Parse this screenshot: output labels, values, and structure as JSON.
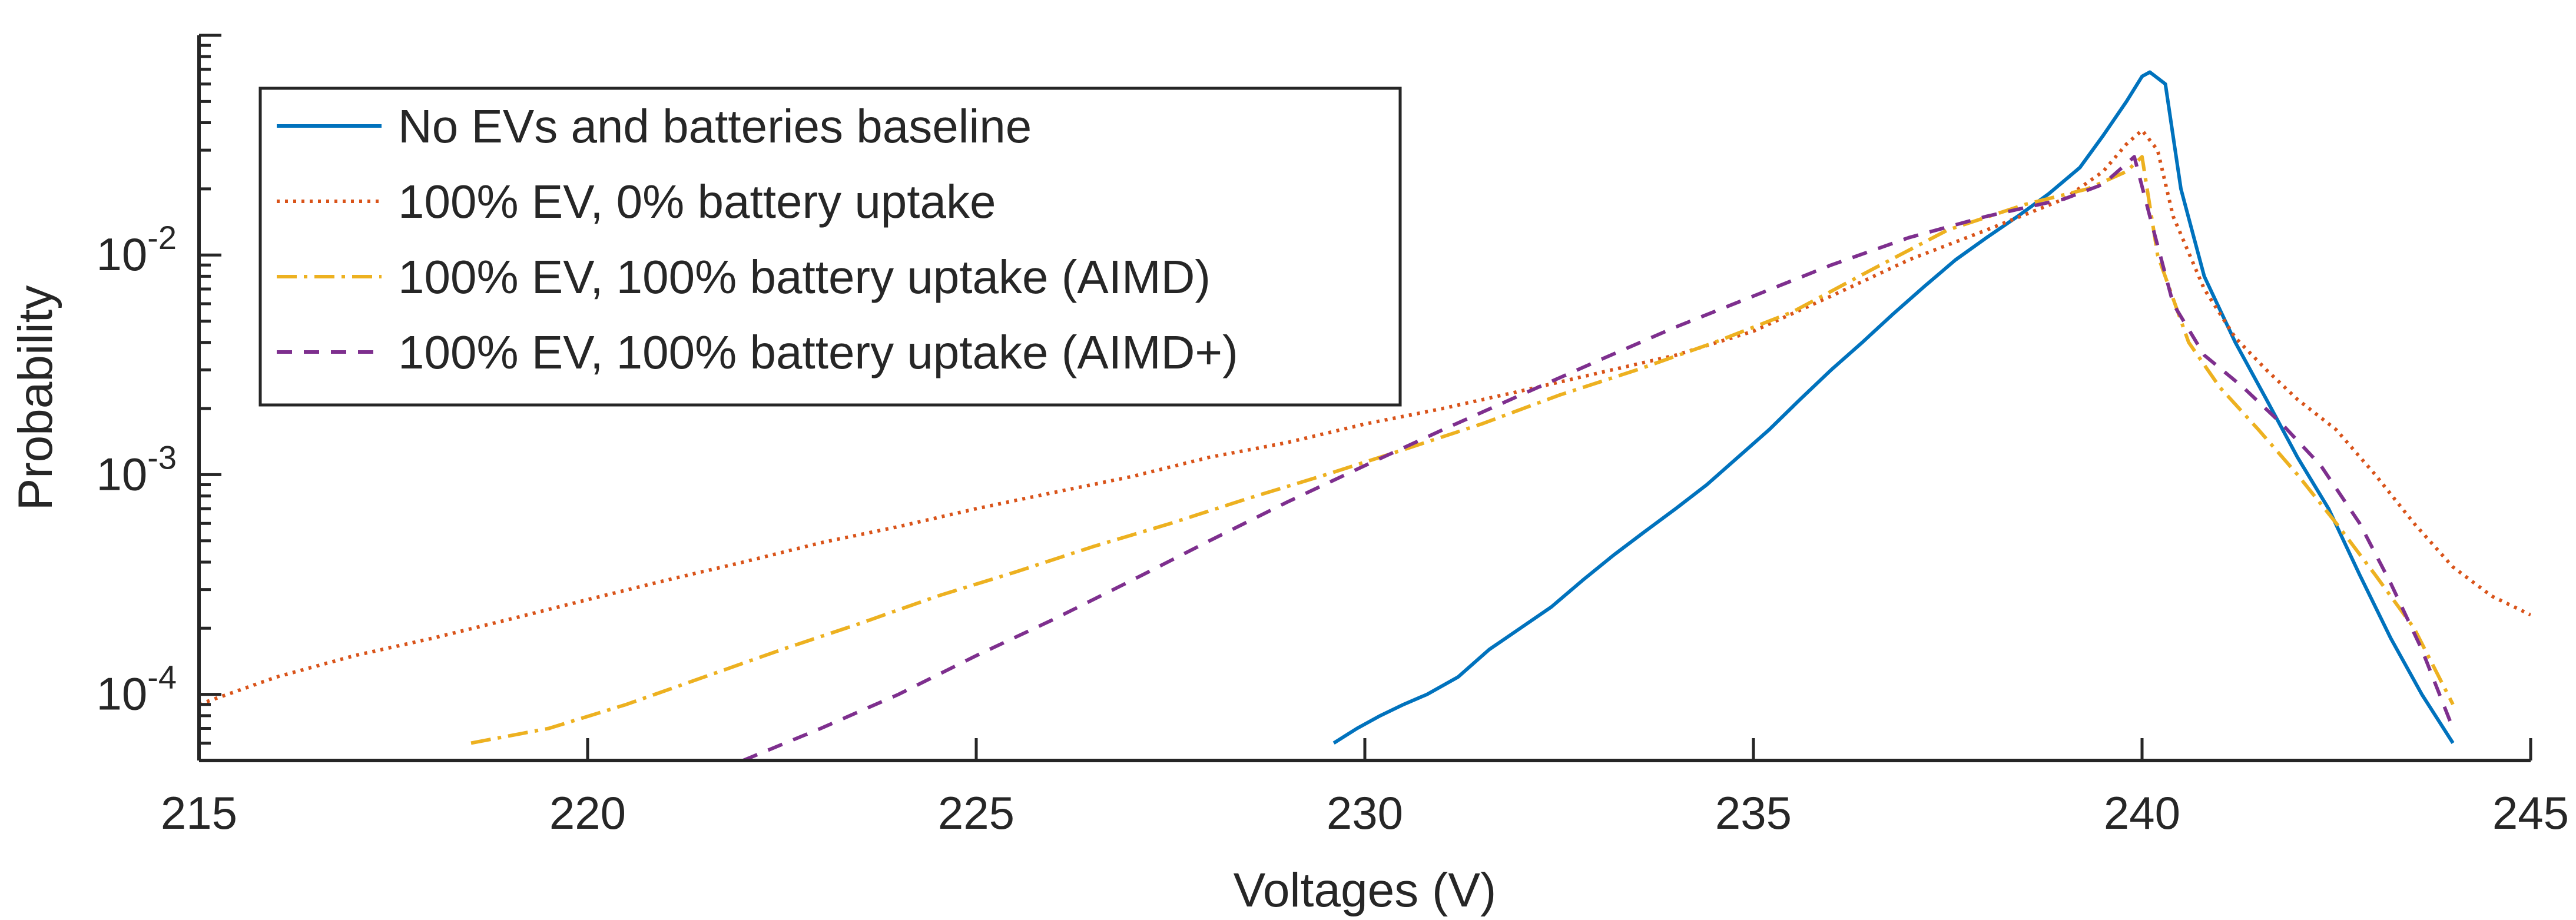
{
  "chart_data": {
    "type": "line",
    "title": "",
    "xlabel": "Voltages (V)",
    "ylabel": "Probability",
    "xlim": [
      215,
      245
    ],
    "ylim": [
      5e-05,
      0.1
    ],
    "yscale": "log",
    "xticks": [
      "215",
      "220",
      "225",
      "230",
      "235",
      "240",
      "245"
    ],
    "yticks": [
      {
        "base": "10",
        "exp": "-4",
        "value": 0.0001
      },
      {
        "base": "10",
        "exp": "-3",
        "value": 0.001
      },
      {
        "base": "10",
        "exp": "-2",
        "value": 0.01
      }
    ],
    "grid": false,
    "legend_position": "top-left",
    "series": [
      {
        "name": "No EVs and batteries baseline",
        "color": "#0072BD",
        "style": "solid",
        "x": [
          229.6,
          229.9,
          230.2,
          230.5,
          230.8,
          231.2,
          231.6,
          232.0,
          232.4,
          232.8,
          233.2,
          233.6,
          234.0,
          234.4,
          234.8,
          235.2,
          235.6,
          236.0,
          236.4,
          236.8,
          237.2,
          237.6,
          238.0,
          238.4,
          238.8,
          239.2,
          239.5,
          239.8,
          240.0,
          240.1,
          240.3,
          240.5,
          240.8,
          241.2,
          241.6,
          242.0,
          242.4,
          242.8,
          243.2,
          243.6,
          244.0
        ],
        "y": [
          6e-05,
          7e-05,
          8e-05,
          9e-05,
          0.0001,
          0.00012,
          0.00016,
          0.0002,
          0.00025,
          0.00033,
          0.00043,
          0.00055,
          0.0007,
          0.0009,
          0.0012,
          0.0016,
          0.0022,
          0.003,
          0.004,
          0.0054,
          0.0072,
          0.0095,
          0.012,
          0.015,
          0.019,
          0.025,
          0.035,
          0.05,
          0.065,
          0.068,
          0.06,
          0.02,
          0.008,
          0.004,
          0.0022,
          0.0012,
          0.0007,
          0.00035,
          0.00018,
          0.0001,
          6e-05
        ]
      },
      {
        "name": "100% EV, 0% battery uptake",
        "color": "#D95319",
        "style": "dotted",
        "x": [
          215.0,
          216.0,
          217.0,
          218.0,
          219.0,
          220.0,
          221.0,
          222.0,
          223.0,
          224.0,
          225.0,
          226.0,
          227.0,
          228.0,
          229.0,
          230.0,
          231.0,
          232.0,
          233.0,
          234.0,
          235.0,
          236.0,
          237.0,
          238.0,
          239.0,
          239.5,
          239.8,
          240.0,
          240.2,
          240.4,
          240.8,
          241.2,
          241.6,
          242.0,
          242.5,
          243.0,
          243.5,
          244.0,
          244.5,
          245.0
        ],
        "y": [
          9e-05,
          0.00012,
          0.00015,
          0.00018,
          0.00022,
          0.00027,
          0.00033,
          0.0004,
          0.00049,
          0.00058,
          0.0007,
          0.00083,
          0.00098,
          0.0012,
          0.0014,
          0.0017,
          0.002,
          0.0024,
          0.0029,
          0.0035,
          0.0045,
          0.0065,
          0.0095,
          0.013,
          0.018,
          0.024,
          0.032,
          0.037,
          0.03,
          0.015,
          0.007,
          0.0042,
          0.003,
          0.0022,
          0.0016,
          0.001,
          0.0006,
          0.00038,
          0.00028,
          0.00023
        ]
      },
      {
        "name": "100% EV, 100% battery uptake (AIMD)",
        "color": "#EDB120",
        "style": "dashdot",
        "x": [
          218.5,
          219.5,
          220.5,
          221.5,
          222.5,
          223.5,
          224.5,
          225.5,
          226.5,
          227.5,
          228.5,
          229.5,
          230.5,
          231.5,
          232.5,
          233.5,
          234.5,
          235.5,
          236.5,
          237.5,
          238.5,
          239.3,
          239.8,
          240.0,
          240.2,
          240.6,
          241.0,
          241.5,
          242.0,
          242.5,
          243.0,
          243.5,
          244.0
        ],
        "y": [
          6e-05,
          7e-05,
          9e-05,
          0.00012,
          0.00016,
          0.00021,
          0.00028,
          0.00036,
          0.00047,
          0.0006,
          0.00078,
          0.001,
          0.0013,
          0.0017,
          0.0023,
          0.003,
          0.004,
          0.0055,
          0.0085,
          0.013,
          0.017,
          0.02,
          0.024,
          0.028,
          0.01,
          0.004,
          0.0025,
          0.0016,
          0.001,
          0.0006,
          0.00035,
          0.0002,
          9e-05
        ]
      },
      {
        "name": "100% EV, 100% battery uptake (AIMD+)",
        "color": "#7E2F8E",
        "style": "dashed",
        "x": [
          222.0,
          223.0,
          224.0,
          225.0,
          226.0,
          227.0,
          228.0,
          229.0,
          230.0,
          231.0,
          232.0,
          233.0,
          234.0,
          235.0,
          236.0,
          237.0,
          238.0,
          239.0,
          239.5,
          239.9,
          240.1,
          240.4,
          240.8,
          241.3,
          241.8,
          242.3,
          242.8,
          243.2,
          243.6,
          244.0
        ],
        "y": [
          5e-05,
          7e-05,
          0.0001,
          0.00015,
          0.00022,
          0.00033,
          0.0005,
          0.00075,
          0.0011,
          0.0016,
          0.0023,
          0.0033,
          0.0047,
          0.0065,
          0.009,
          0.012,
          0.015,
          0.018,
          0.021,
          0.028,
          0.015,
          0.006,
          0.0035,
          0.0025,
          0.0017,
          0.0011,
          0.0006,
          0.00032,
          0.00016,
          7e-05
        ]
      }
    ]
  }
}
